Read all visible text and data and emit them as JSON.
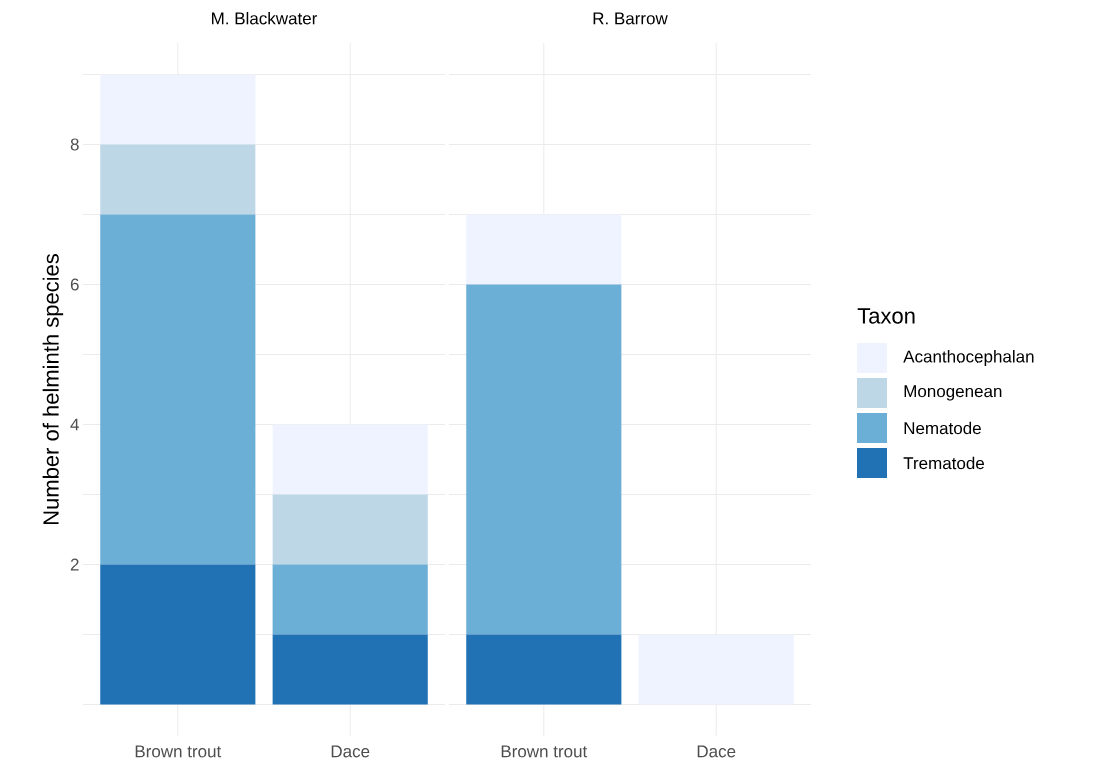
{
  "chart_data": [
    {
      "type": "bar",
      "title": "M. Blackwater",
      "ylabel": "Number of helminth species",
      "categories": [
        "Brown trout",
        "Dace"
      ],
      "stacked": true,
      "series": [
        {
          "color": "#2171b5",
          "values": [
            2,
            1
          ]
        },
        {
          "color": "#6baed6",
          "values": [
            5,
            1
          ]
        },
        {
          "color": "#bdd7e7",
          "values": [
            1,
            1
          ]
        },
        {
          "color": "#eff3ff",
          "values": [
            1,
            1
          ]
        }
      ],
      "ylim": [
        -0.45,
        9.45
      ],
      "yticks": [
        {
          "value": 0,
          "label": null
        },
        {
          "value": 1,
          "label": null
        },
        2,
        {
          "value": 3,
          "label": null
        },
        4,
        {
          "value": 5,
          "label": null
        },
        6,
        {
          "value": 7,
          "label": null
        },
        8,
        {
          "value": 9,
          "label": null
        }
      ],
      "grid": true,
      "legend": false
    },
    {
      "type": "bar",
      "title": "R. Barrow",
      "categories": [
        "Brown trout",
        "Dace"
      ],
      "stacked": true,
      "series": [
        {
          "name": "Trematode",
          "color": "#2171b5",
          "values": [
            1,
            0
          ]
        },
        {
          "name": "Nematode",
          "color": "#6baed6",
          "values": [
            5,
            0
          ]
        },
        {
          "name": "Monogenean",
          "color": "#bdd7e7",
          "values": [
            0,
            0
          ]
        },
        {
          "name": "Acanthocephalan",
          "color": "#eff3ff",
          "values": [
            1,
            1
          ]
        }
      ],
      "ylim": [
        -0.45,
        9.45
      ],
      "yticks": [
        {
          "value": 0,
          "label": null
        },
        {
          "value": 1,
          "label": null
        },
        2,
        {
          "value": 3,
          "label": null
        },
        4,
        {
          "value": 5,
          "label": null
        },
        6,
        {
          "value": 7,
          "label": null
        },
        8,
        {
          "value": 9,
          "label": null
        }
      ],
      "grid": true,
      "tick_labels": "x",
      "legend": "right",
      "legend_title": "Taxon"
    }
  ]
}
